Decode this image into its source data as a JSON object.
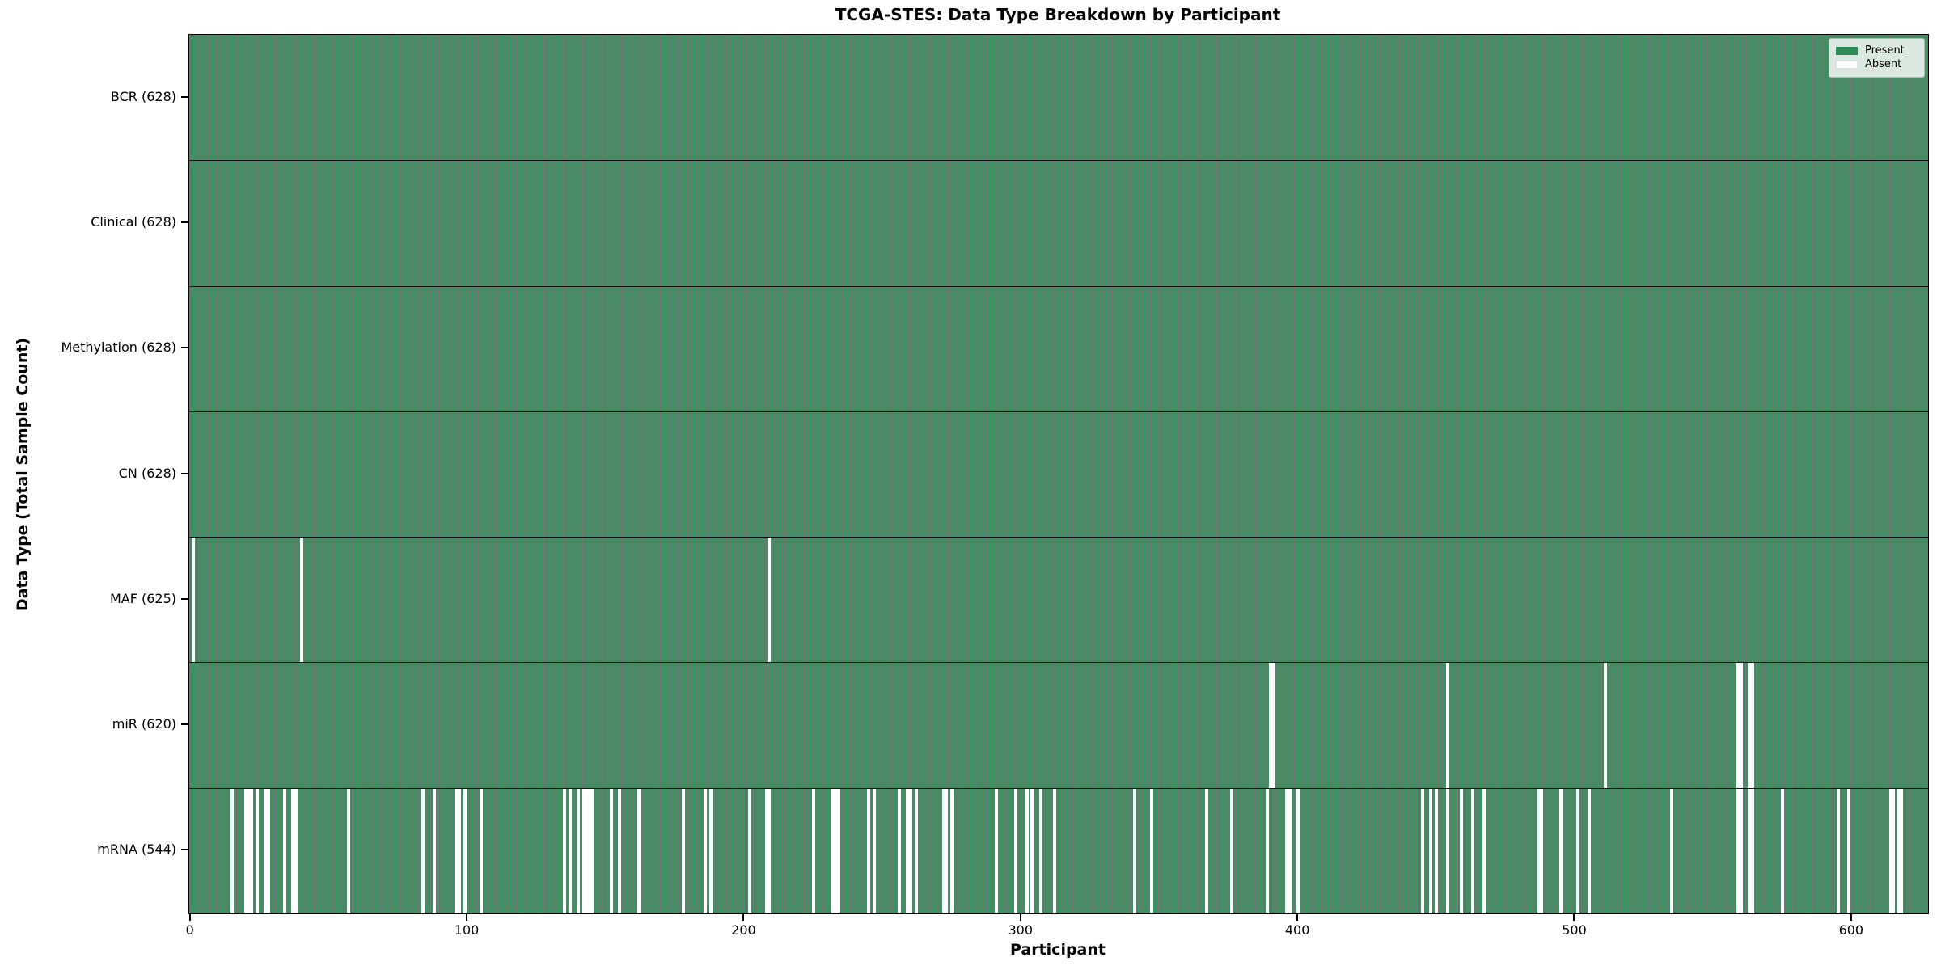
{
  "title": "TCGA-STES: Data Type Breakdown by Participant",
  "axes": {
    "x_label": "Participant",
    "y_label": "Data Type (Total Sample Count)"
  },
  "legend": {
    "present_label": "Present",
    "absent_label": "Absent"
  },
  "colors": {
    "present_fill": "#3f8f62",
    "present_edge": "rgba(0,0,0,0.55)",
    "absent_fill": "#ffffff",
    "legend_present": "#2e8b57"
  },
  "chart_data": {
    "type": "heatmap",
    "title": "TCGA-STES: Data Type Breakdown by Participant",
    "xlabel": "Participant",
    "ylabel": "Data Type (Total Sample Count)",
    "legend": [
      "Present",
      "Absent"
    ],
    "legend_position": "upper right",
    "n_participants": 628,
    "x_ticks": [
      0,
      100,
      200,
      300,
      400,
      500,
      600
    ],
    "xlim": [
      -0.5,
      627.5
    ],
    "grid": false,
    "rows": [
      {
        "key": "bcr",
        "label": "BCR (628)",
        "total": 628,
        "absent_participants": []
      },
      {
        "key": "clinical",
        "label": "Clinical (628)",
        "total": 628,
        "absent_participants": []
      },
      {
        "key": "methylation",
        "label": "Methylation (628)",
        "total": 628,
        "absent_participants": []
      },
      {
        "key": "cn",
        "label": "CN (628)",
        "total": 628,
        "absent_participants": []
      },
      {
        "key": "maf",
        "label": "MAF (625)",
        "total": 625,
        "absent_participants": [
          1,
          40,
          209
        ]
      },
      {
        "key": "mir",
        "label": "miR (620)",
        "total": 620,
        "absent_participants": [
          390,
          391,
          454,
          511,
          559,
          560,
          563,
          564
        ]
      },
      {
        "key": "mrna",
        "label": "mRNA (544)",
        "total": 544,
        "absent_participants": [
          15,
          20,
          21,
          22,
          24,
          27,
          28,
          34,
          37,
          38,
          57,
          84,
          88,
          96,
          97,
          99,
          105,
          135,
          137,
          140,
          142,
          143,
          144,
          145,
          152,
          155,
          162,
          178,
          186,
          188,
          202,
          208,
          209,
          225,
          232,
          233,
          234,
          245,
          247,
          256,
          259,
          260,
          262,
          272,
          273,
          275,
          291,
          298,
          302,
          304,
          307,
          312,
          341,
          347,
          367,
          376,
          389,
          396,
          397,
          400,
          445,
          448,
          450,
          454,
          459,
          463,
          467,
          487,
          488,
          495,
          501,
          505,
          535,
          559,
          560,
          563,
          564,
          575,
          595,
          599,
          614,
          615,
          617,
          618
        ]
      }
    ]
  }
}
